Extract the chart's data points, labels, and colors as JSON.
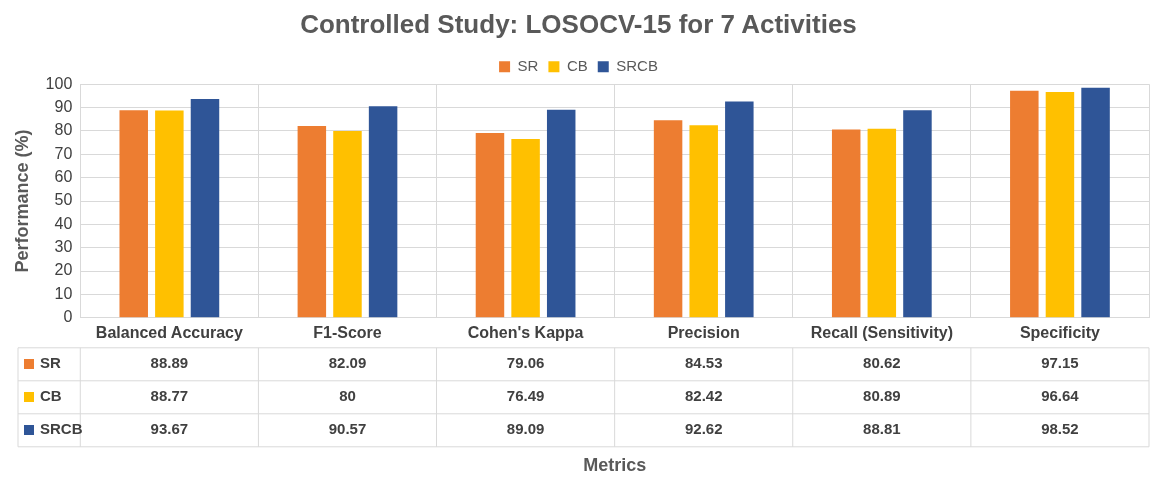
{
  "chart_data": {
    "type": "bar",
    "title": "Controlled Study: LOSOCV-15 for 7 Activities",
    "annotations": [
      "Metrics"
    ],
    "ylabel": "Performance (%)",
    "categories": [
      "Balanced Accuracy",
      "F1-Score",
      "Cohen's Kappa",
      "Precision",
      "Recall (Sensitivity)",
      "Specificity"
    ],
    "series": [
      {
        "name": "SR",
        "color": "#ed7d31",
        "values": [
          88.89,
          82.09,
          79.06,
          84.53,
          80.62,
          97.15
        ]
      },
      {
        "name": "CB",
        "color": "#ffc000",
        "values": [
          88.77,
          80,
          76.49,
          82.42,
          80.89,
          96.64
        ]
      },
      {
        "name": "SRCB",
        "color": "#2f5597",
        "values": [
          93.67,
          90.57,
          89.09,
          92.62,
          88.81,
          98.52
        ]
      }
    ],
    "ylim": [
      0,
      100
    ],
    "yticks": [
      0,
      10,
      20,
      30,
      40,
      50,
      60,
      70,
      80,
      90,
      100
    ],
    "grid": true,
    "legend": "top",
    "data_labels": true
  }
}
